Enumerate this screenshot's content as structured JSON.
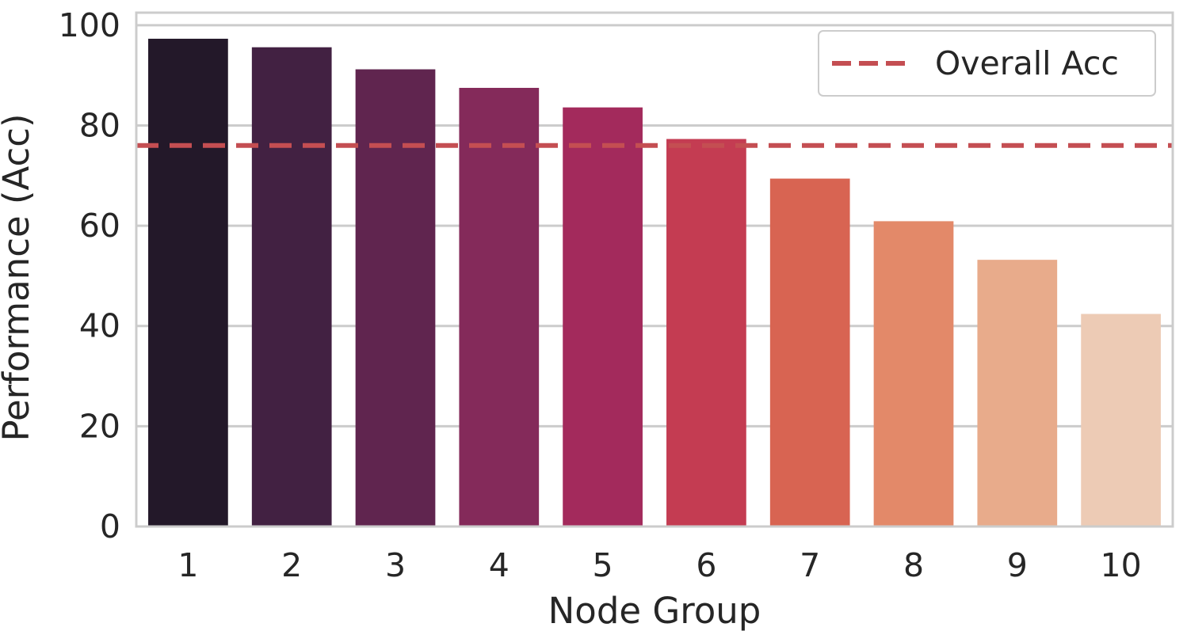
{
  "chart_data": {
    "type": "bar",
    "categories": [
      "1",
      "2",
      "3",
      "4",
      "5",
      "6",
      "7",
      "8",
      "9",
      "10"
    ],
    "values": [
      97.3,
      95.6,
      91.2,
      87.5,
      83.6,
      77.3,
      69.4,
      60.9,
      53.2,
      42.4
    ],
    "bar_colors": [
      "#231829",
      "#422142",
      "#60254f",
      "#842a5a",
      "#a32a5c",
      "#c43c52",
      "#d86452",
      "#e38969",
      "#e8ab8b",
      "#edcbb5"
    ],
    "reference_line": {
      "label": "Overall Acc",
      "value": 76.0,
      "color": "#c44e52",
      "style": "dashed"
    },
    "xlabel": "Node Group",
    "ylabel": "Performance (Acc)",
    "ylim": [
      0,
      102.5
    ],
    "yticks": [
      "0",
      "20",
      "40",
      "60",
      "80",
      "100"
    ],
    "grid": "horizontal",
    "legend_position": "top-right"
  }
}
